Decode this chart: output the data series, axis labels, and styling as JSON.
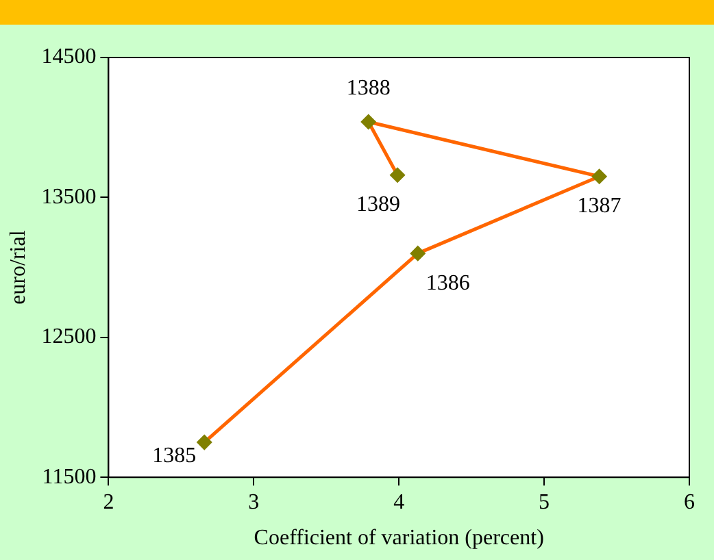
{
  "chart_data": {
    "type": "line",
    "xlabel": "Coefficient of variation (percent)",
    "ylabel": "euro/rial",
    "x": [
      2.66,
      4.13,
      5.38,
      3.79,
      3.99
    ],
    "series": [
      {
        "color": "#ff6600",
        "values": [
          11750,
          13100,
          13650,
          14040,
          13660
        ]
      }
    ],
    "marker": "diamond",
    "line_style": "solid",
    "grid": false,
    "legend": false,
    "xlim": [
      2,
      6
    ],
    "xticks": [
      2,
      3,
      4,
      5,
      6
    ],
    "ylim": [
      11500,
      14500
    ],
    "yticks": [
      11500,
      12500,
      13500,
      14500
    ],
    "annotations": [
      {
        "text": "1385",
        "x": 2.66,
        "y": 11750
      },
      {
        "text": "1386",
        "x": 4.13,
        "y": 13100
      },
      {
        "text": "1387",
        "x": 5.38,
        "y": 13650
      },
      {
        "text": "1388",
        "x": 3.79,
        "y": 14040
      },
      {
        "text": "1389",
        "x": 3.99,
        "y": 13660
      }
    ]
  }
}
